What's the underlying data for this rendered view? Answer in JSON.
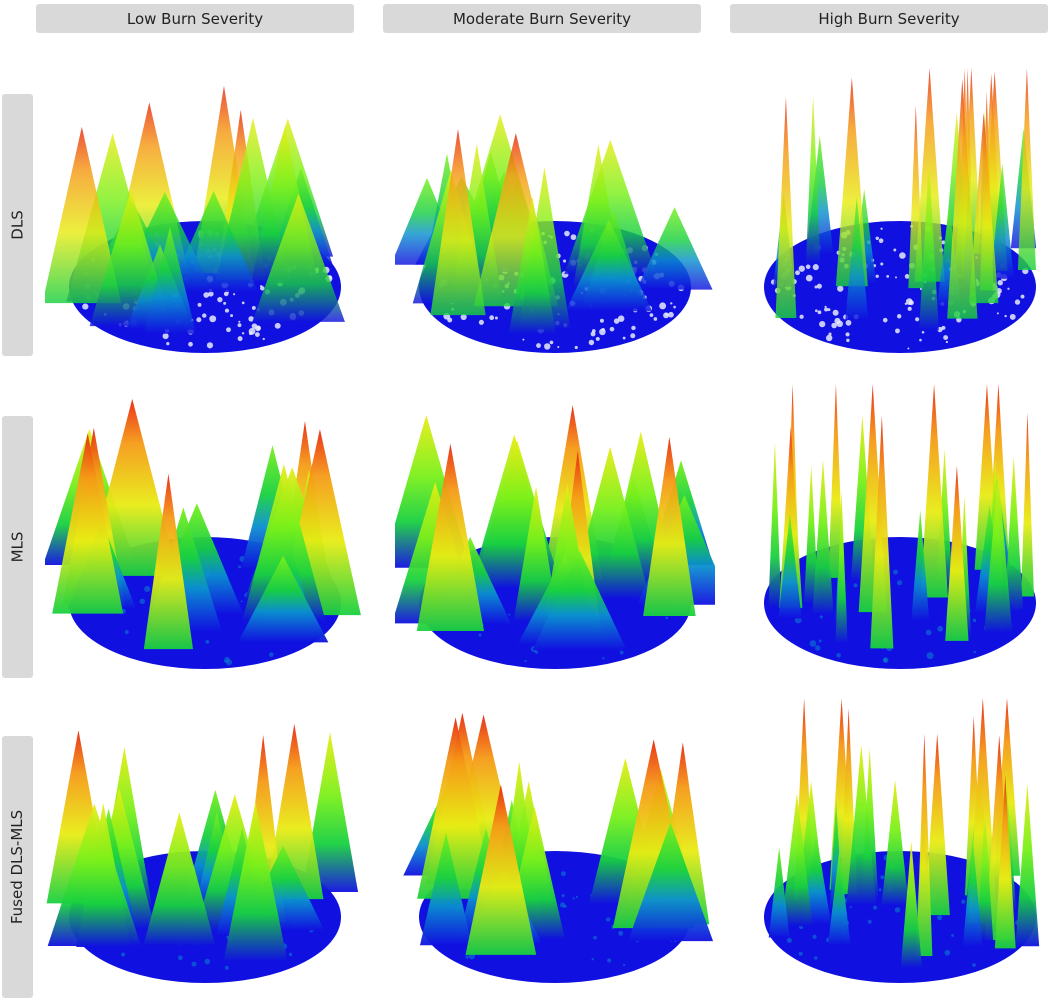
{
  "columns": [
    "Low Burn Severity",
    "Moderate Burn Severity",
    "High Burn Severity"
  ],
  "rows": [
    "DLS",
    "MLS",
    "Fused DLS-MLS"
  ],
  "colormap": [
    "#1010e0",
    "#0a8fcf",
    "#18d040",
    "#7af01a",
    "#e8ec14",
    "#f59a16",
    "#e8280e"
  ]
}
